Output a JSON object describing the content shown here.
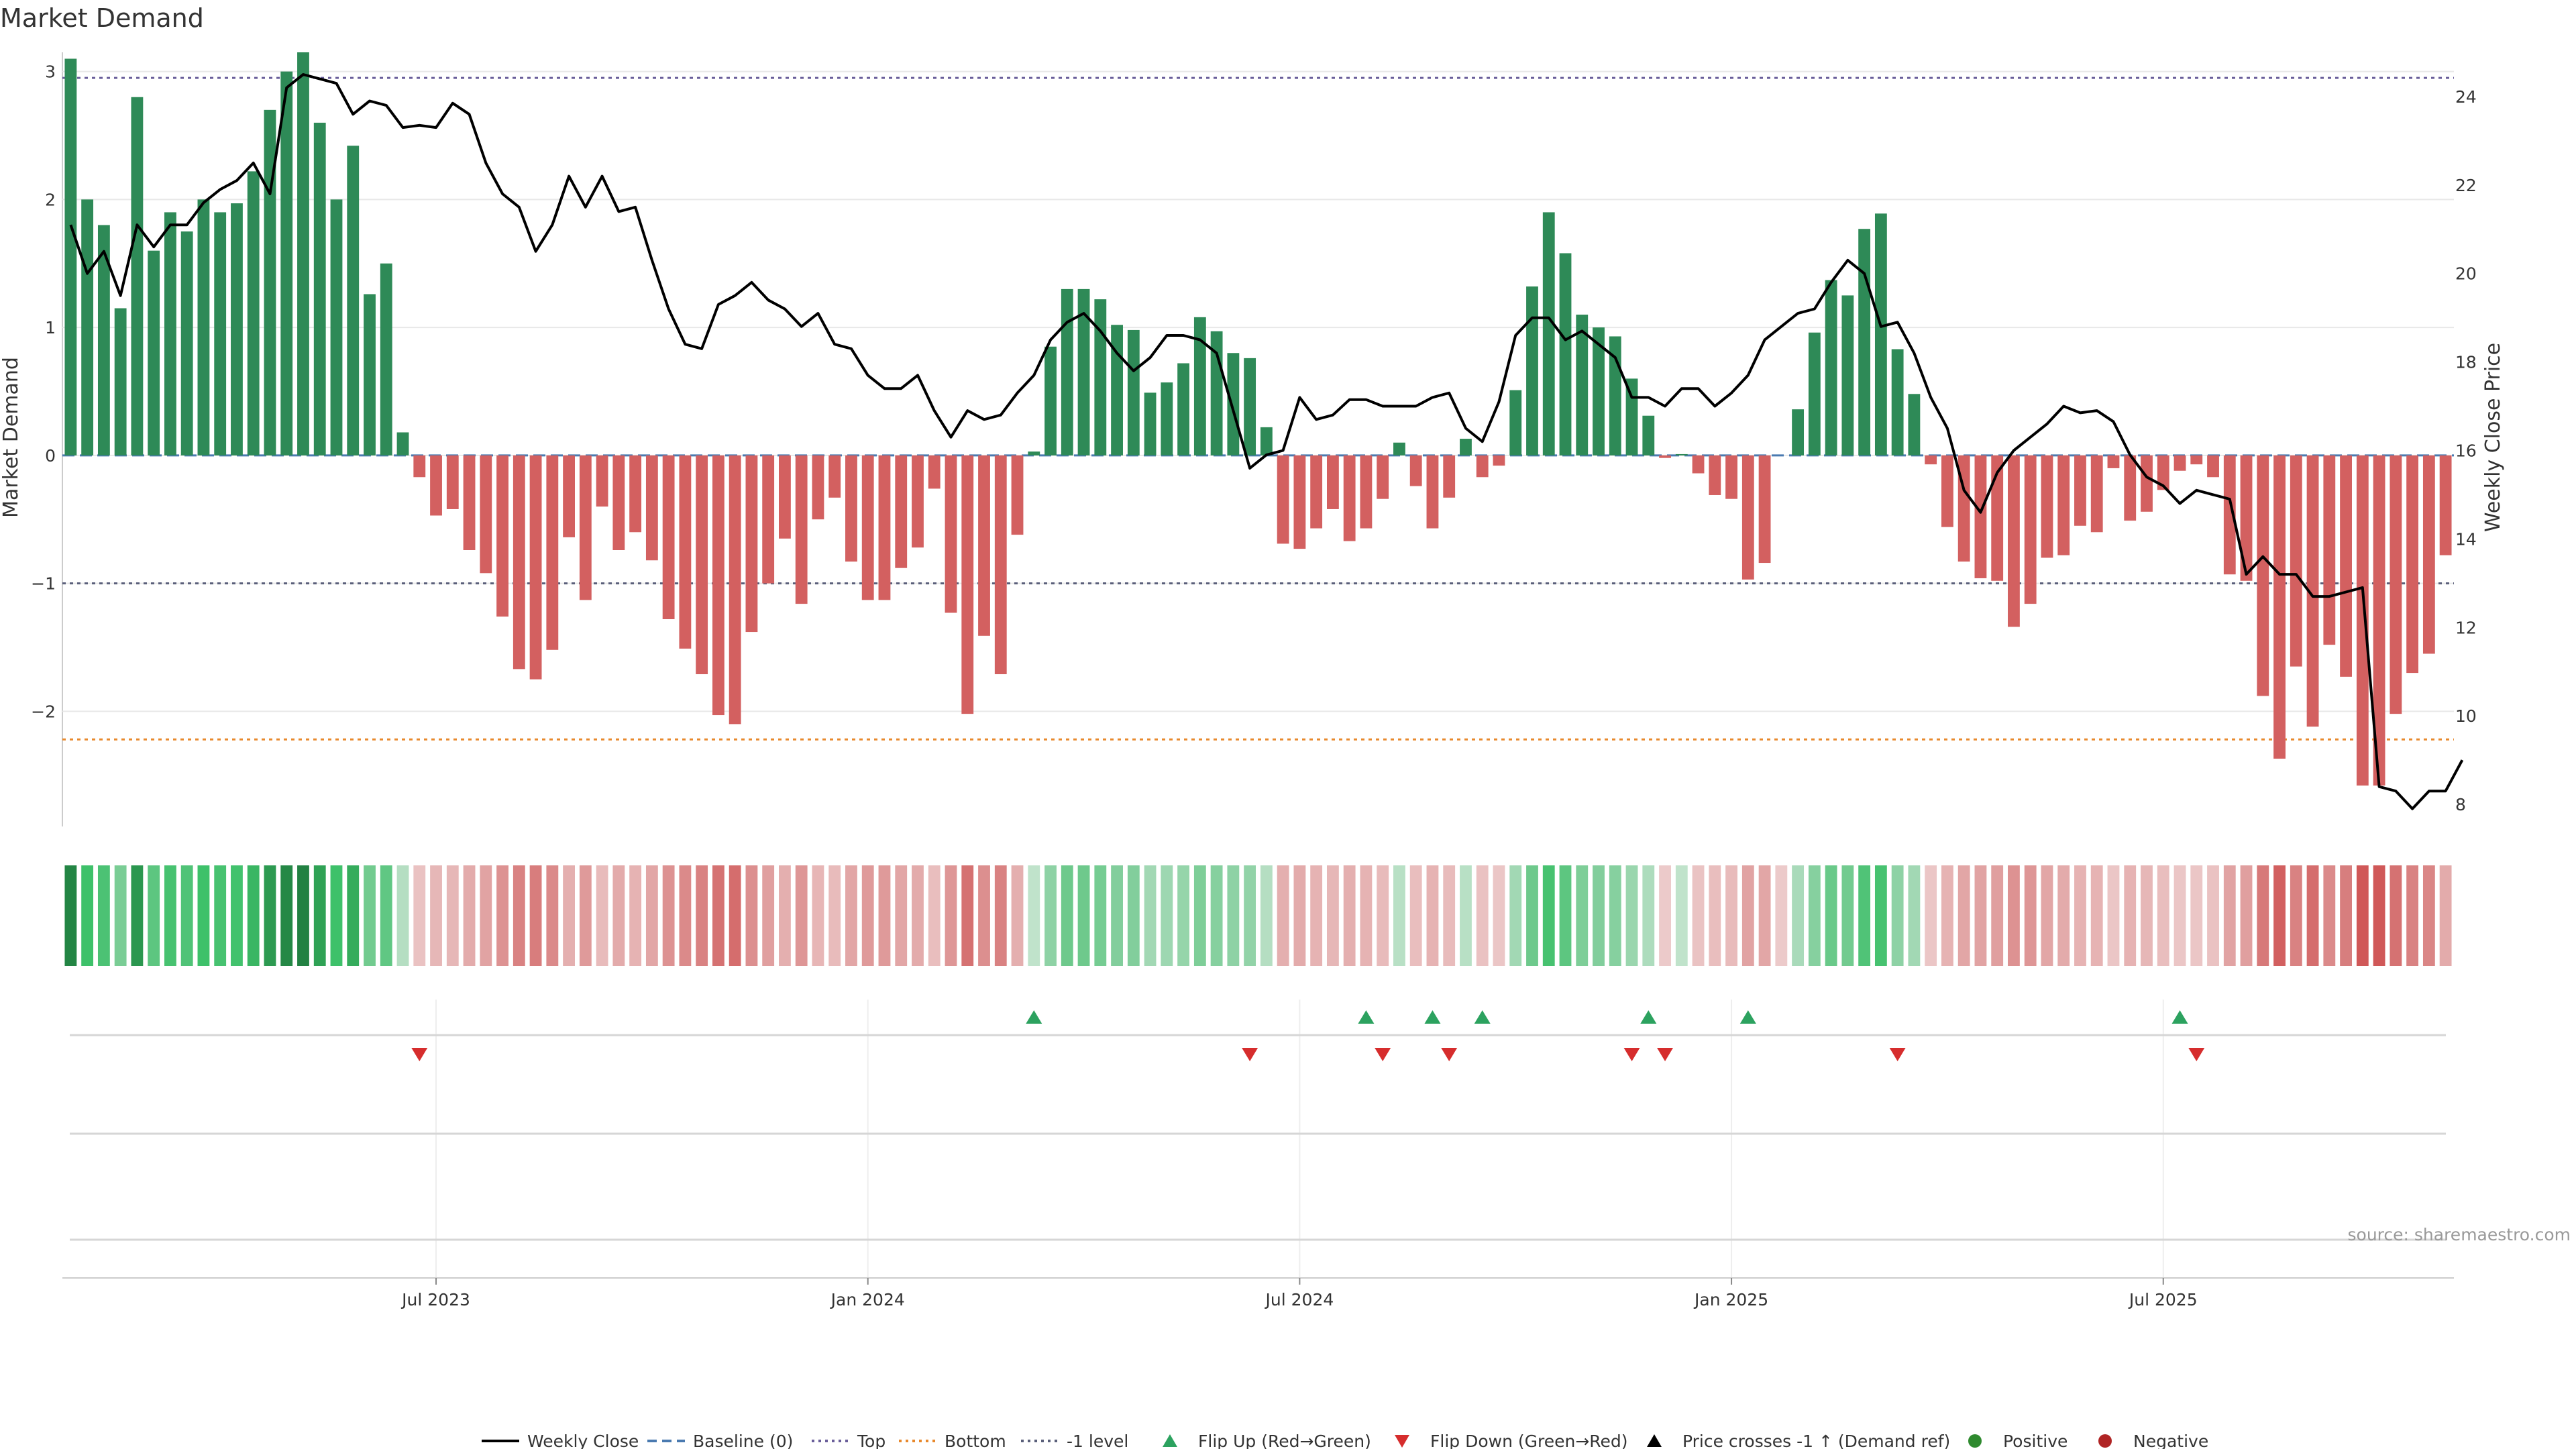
{
  "chart_data": {
    "type": "bar",
    "title": "Market Demand",
    "ylabel_left": "Market Demand",
    "ylabel_right": "Weekly Close Price",
    "source": "source: sharemaestro.com",
    "y_left_range": [
      -2.9,
      3.15
    ],
    "y_right_range": [
      7.5,
      25.0
    ],
    "y_left_ticks": [
      {
        "value": 3,
        "label": "3"
      },
      {
        "value": 2,
        "label": "2"
      },
      {
        "value": 1,
        "label": "1"
      },
      {
        "value": 0,
        "label": "0"
      },
      {
        "value": -1,
        "label": "−1"
      },
      {
        "value": -2,
        "label": "−2"
      }
    ],
    "y_right_ticks": [
      {
        "value": 24,
        "label": "24"
      },
      {
        "value": 22,
        "label": "22"
      },
      {
        "value": 20,
        "label": "20"
      },
      {
        "value": 18,
        "label": "18"
      },
      {
        "value": 16,
        "label": "16"
      },
      {
        "value": 14,
        "label": "14"
      },
      {
        "value": 12,
        "label": "12"
      },
      {
        "value": 10,
        "label": "10"
      },
      {
        "value": 8,
        "label": "8"
      }
    ],
    "x_ticks": [
      {
        "week": 22,
        "label": "Jul 2023"
      },
      {
        "week": 48,
        "label": "Jan 2024"
      },
      {
        "week": 74,
        "label": "Jul 2024"
      },
      {
        "week": 100,
        "label": "Jan 2025"
      },
      {
        "week": 126,
        "label": "Jul 2025"
      }
    ],
    "reference_lines": {
      "top": 2.95,
      "bottom": -2.22,
      "minus_one": -1.0,
      "baseline": 0
    },
    "demand_values": [
      3.1,
      2.0,
      1.8,
      1.15,
      2.8,
      1.6,
      1.9,
      1.75,
      2.0,
      1.9,
      1.97,
      2.22,
      2.7,
      3.0,
      3.15,
      2.6,
      2.0,
      2.42,
      1.26,
      1.5,
      0.18,
      -0.17,
      -0.47,
      -0.42,
      -0.74,
      -0.92,
      -1.26,
      -1.67,
      -1.75,
      -1.52,
      -0.64,
      -1.13,
      -0.4,
      -0.74,
      -0.6,
      -0.82,
      -1.28,
      -1.51,
      -1.71,
      -2.03,
      -2.1,
      -1.38,
      -1.0,
      -0.65,
      -1.16,
      -0.5,
      -0.33,
      -0.83,
      -1.13,
      -1.13,
      -0.88,
      -0.72,
      -0.26,
      -1.23,
      -2.02,
      -1.41,
      -1.71,
      -0.62,
      0.03,
      0.85,
      1.3,
      1.3,
      1.22,
      1.02,
      0.98,
      0.49,
      0.57,
      0.72,
      1.08,
      0.97,
      0.8,
      0.76,
      0.22,
      -0.69,
      -0.73,
      -0.57,
      -0.42,
      -0.67,
      -0.57,
      -0.34,
      0.1,
      -0.24,
      -0.57,
      -0.33,
      0.13,
      -0.17,
      -0.08,
      0.51,
      1.32,
      1.9,
      1.58,
      1.1,
      1.0,
      0.93,
      0.6,
      0.31,
      -0.02,
      0.01,
      -0.14,
      -0.31,
      -0.34,
      -0.97,
      -0.84,
      0.0,
      0.36,
      0.96,
      1.37,
      1.25,
      1.77,
      1.89,
      0.83,
      0.48,
      -0.07,
      -0.56,
      -0.83,
      -0.96,
      -0.98,
      -1.34,
      -1.16,
      -0.8,
      -0.78,
      -0.55,
      -0.6,
      -0.1,
      -0.51,
      -0.44,
      -0.27,
      -0.12,
      -0.07,
      -0.17,
      -0.93,
      -0.98,
      -1.88,
      -2.37,
      -1.65,
      -2.12,
      -1.48,
      -1.73,
      -2.58,
      -2.58,
      -2.02,
      -1.7,
      -1.55,
      -0.78
    ],
    "weekly_close": [
      21.1,
      20.0,
      20.5,
      19.5,
      21.1,
      20.6,
      21.1,
      21.1,
      21.6,
      21.9,
      22.1,
      22.5,
      21.8,
      24.2,
      24.5,
      24.4,
      24.3,
      23.6,
      23.9,
      23.8,
      23.3,
      23.35,
      23.3,
      23.85,
      23.6,
      22.5,
      21.8,
      21.5,
      20.5,
      21.1,
      22.2,
      21.5,
      22.2,
      21.4,
      21.5,
      20.3,
      19.2,
      18.4,
      18.3,
      19.3,
      19.5,
      19.8,
      19.4,
      19.2,
      18.8,
      19.1,
      18.4,
      18.3,
      17.7,
      17.4,
      17.4,
      17.7,
      16.9,
      16.3,
      16.9,
      16.7,
      16.8,
      17.3,
      17.7,
      18.5,
      18.9,
      19.1,
      18.7,
      18.2,
      17.8,
      18.1,
      18.6,
      18.6,
      18.5,
      18.2,
      16.9,
      15.6,
      15.9,
      16.0,
      17.2,
      16.7,
      16.8,
      17.15,
      17.15,
      17.0,
      17.0,
      17.0,
      17.2,
      17.3,
      16.5,
      16.2,
      17.1,
      18.6,
      19.0,
      19.0,
      18.5,
      18.7,
      18.4,
      18.1,
      17.2,
      17.2,
      17.0,
      17.4,
      17.4,
      17.0,
      17.3,
      17.7,
      18.5,
      18.8,
      19.1,
      19.2,
      19.8,
      20.3,
      20.0,
      18.8,
      18.9,
      18.2,
      17.2,
      16.5,
      15.1,
      14.6,
      15.5,
      16.0,
      16.3,
      16.6,
      17.0,
      16.85,
      16.9,
      16.65,
      15.9,
      15.4,
      15.2,
      14.8,
      15.1,
      15.0,
      14.9,
      13.2,
      13.6,
      13.2,
      13.2,
      12.7,
      12.7,
      12.8,
      12.9,
      8.4,
      8.3,
      7.9,
      8.3,
      8.3,
      9.0
    ],
    "flip_up_weeks": [
      58,
      78,
      82,
      85,
      95,
      101,
      127
    ],
    "flip_down_weeks": [
      21,
      71,
      79,
      83,
      94,
      96,
      110,
      128
    ],
    "legend": [
      {
        "label": "Weekly Close",
        "marker": "line",
        "color": "#000000"
      },
      {
        "label": "Baseline (0)",
        "marker": "dash",
        "color": "#4a7ab0"
      },
      {
        "label": "Top",
        "marker": "dot",
        "color": "#6a5f9a"
      },
      {
        "label": "Bottom",
        "marker": "dot",
        "color": "#e8892d"
      },
      {
        "label": "-1 level",
        "marker": "dot",
        "color": "#5a5f7a"
      },
      {
        "label": "Flip Up (Red→Green)",
        "marker": "triangle-up",
        "color": "#2ca25f"
      },
      {
        "label": "Flip Down (Green→Red)",
        "marker": "triangle-down",
        "color": "#d62d2d"
      },
      {
        "label": "Price crosses -1 ↑ (Demand ref)",
        "marker": "triangle-up",
        "color": "#000000"
      },
      {
        "label": "Positive",
        "marker": "circle",
        "color": "#2f8a2f"
      },
      {
        "label": "Negative",
        "marker": "circle",
        "color": "#b02424"
      }
    ]
  },
  "colors": {
    "positive_bar": "#2e8a57",
    "negative_bar": "#d36060",
    "price_line": "#000000",
    "baseline": "#4a7ab0",
    "top_line": "#6a5f9a",
    "bottom_line": "#e8892d",
    "minus_one_line": "#5a5f7a",
    "flip_up": "#2ca25f",
    "flip_down": "#d62d2d",
    "grid": "#e8e8e8",
    "axis": "#cccccc"
  }
}
